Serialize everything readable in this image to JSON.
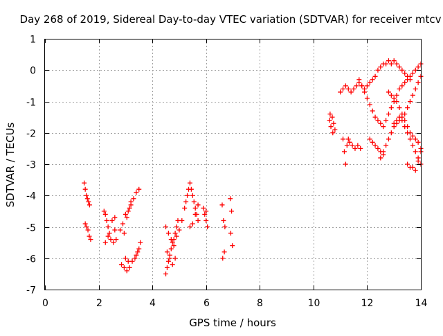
{
  "chart_data": {
    "type": "scatter",
    "title": "Day 268 of 2019, Sidereal Day-to-day VTEC variation (SDTVAR) for receiver mtcv",
    "xlabel": "GPS time / hours",
    "ylabel": "SDTVAR / TECUs",
    "xlim": [
      0,
      14
    ],
    "ylim": [
      -7,
      1
    ],
    "xticks": [
      "0",
      "2",
      "4",
      "6",
      "8",
      "10",
      "12",
      "14"
    ],
    "yticks": [
      "1",
      "0",
      "-1",
      "-2",
      "-3",
      "-4",
      "-5",
      "-6",
      "-7"
    ],
    "grid": true,
    "marker": "plus",
    "colors": {
      "series": "#ff0000",
      "grid": "#a0a0a0",
      "axis": "#000000"
    },
    "series": [
      {
        "x": [
          1.46,
          1.5,
          1.54,
          1.58,
          1.62,
          1.66,
          1.5,
          1.55,
          1.6,
          1.65,
          1.7,
          2.2,
          2.25,
          2.3,
          2.35,
          2.4,
          2.45,
          2.55,
          2.65,
          2.6,
          2.25,
          2.35,
          2.5,
          2.6,
          2.8,
          2.9,
          3.0,
          3.1,
          3.2,
          3.3,
          3.4,
          3.5,
          3.05,
          3.15,
          2.95,
          3.2,
          2.85,
          2.95,
          3.05,
          3.15,
          3.25,
          3.35,
          3.45,
          3.55,
          3.0,
          3.1,
          3.4,
          3.5
        ],
        "y": [
          -3.6,
          -3.8,
          -4.0,
          -4.1,
          -4.2,
          -4.3,
          -4.9,
          -5.0,
          -5.1,
          -5.3,
          -5.4,
          -4.5,
          -4.6,
          -4.8,
          -5.0,
          -5.2,
          -5.4,
          -5.5,
          -5.4,
          -5.1,
          -5.5,
          -5.3,
          -4.8,
          -4.7,
          -5.1,
          -4.9,
          -4.6,
          -4.5,
          -4.3,
          -4.1,
          -3.9,
          -3.8,
          -4.7,
          -4.4,
          -5.2,
          -4.2,
          -6.2,
          -6.3,
          -6.4,
          -6.3,
          -6.1,
          -6.0,
          -5.8,
          -5.5,
          -6.0,
          -6.1,
          -5.9,
          -5.7
        ]
      },
      {
        "x": [
          4.5,
          4.55,
          4.6,
          4.65,
          4.7,
          4.75,
          4.8,
          4.85,
          4.9,
          4.95,
          4.5,
          4.6,
          4.7,
          4.8,
          4.9,
          5.0,
          5.1,
          4.55,
          4.65,
          4.75,
          4.85,
          5.2,
          5.25,
          5.3,
          5.35,
          5.4,
          5.45,
          5.5,
          5.55,
          5.6,
          5.65,
          5.7,
          5.4,
          5.5,
          5.6,
          5.7,
          5.9,
          5.95,
          6.0,
          6.05,
          6.0,
          6.6,
          6.65,
          6.7,
          6.62,
          6.68,
          6.9,
          6.95,
          6.92,
          6.98
        ],
        "y": [
          -6.5,
          -6.3,
          -6.1,
          -5.9,
          -5.7,
          -5.5,
          -5.4,
          -5.2,
          -5.0,
          -4.8,
          -5.0,
          -5.2,
          -5.4,
          -5.6,
          -5.3,
          -5.1,
          -4.8,
          -5.8,
          -6.0,
          -6.2,
          -6.0,
          -4.4,
          -4.2,
          -4.0,
          -3.8,
          -3.6,
          -3.8,
          -4.0,
          -4.2,
          -4.4,
          -4.6,
          -4.8,
          -5.0,
          -4.9,
          -4.6,
          -4.3,
          -4.4,
          -4.6,
          -4.8,
          -5.0,
          -4.5,
          -4.3,
          -4.8,
          -5.0,
          -6.0,
          -5.8,
          -4.1,
          -4.5,
          -5.2,
          -5.6
        ]
      },
      {
        "x": [
          10.6,
          10.65,
          10.7,
          10.75,
          10.8,
          10.62,
          10.72,
          11.1,
          11.15,
          11.2,
          11.25,
          11.3,
          11.35,
          11.45,
          11.55,
          11.65,
          11.75,
          11.0,
          11.1,
          11.2,
          11.3,
          11.4,
          11.5,
          11.6,
          11.7,
          11.8,
          11.9,
          12.0,
          12.1,
          12.2,
          12.3,
          12.4,
          12.5,
          12.6,
          12.7,
          12.8,
          12.9,
          13.0,
          13.1,
          13.2,
          13.3,
          13.4,
          13.5,
          13.6,
          12.1,
          12.2,
          12.3,
          12.4,
          12.5,
          12.6,
          12.5,
          12.6,
          12.7,
          12.8,
          12.9,
          13.0,
          13.1,
          13.2,
          13.3,
          13.4,
          13.5,
          13.6,
          13.7,
          13.8,
          13.9,
          14.0,
          11.7,
          11.8,
          11.9,
          12.0,
          12.1,
          12.2,
          12.3,
          12.4,
          12.5,
          12.6,
          12.7,
          12.8,
          12.9,
          13.0,
          13.1,
          13.2,
          13.3,
          13.4,
          13.5,
          13.6,
          13.7,
          13.8,
          13.9,
          14.0,
          13.0,
          13.1,
          13.2,
          13.3,
          13.4,
          13.5,
          13.6,
          13.7,
          13.8,
          13.9,
          14.0,
          12.8,
          12.9,
          13.0,
          13.1,
          13.2,
          13.3,
          13.4,
          13.5,
          13.6,
          13.7,
          13.8,
          13.9,
          14.0,
          13.7,
          13.8,
          13.9,
          14.0,
          13.5,
          13.6
        ],
        "y": [
          -1.6,
          -1.8,
          -1.5,
          -1.7,
          -1.9,
          -1.4,
          -2.0,
          -2.2,
          -2.6,
          -3.0,
          -2.4,
          -2.2,
          -2.3,
          -2.4,
          -2.5,
          -2.4,
          -2.5,
          -0.7,
          -0.6,
          -0.5,
          -0.6,
          -0.7,
          -0.6,
          -0.5,
          -0.4,
          -0.5,
          -0.6,
          -0.5,
          -0.4,
          -0.3,
          -0.2,
          0.0,
          0.1,
          0.2,
          0.2,
          0.3,
          0.2,
          0.3,
          0.2,
          0.1,
          0.0,
          -0.1,
          -0.2,
          -0.3,
          -2.2,
          -2.3,
          -2.4,
          -2.5,
          -2.6,
          -2.7,
          -2.8,
          -2.6,
          -2.4,
          -2.2,
          -2.0,
          -1.8,
          -1.7,
          -1.6,
          -1.5,
          -1.4,
          -1.2,
          -1.0,
          -0.8,
          -0.6,
          -0.4,
          -0.2,
          -0.3,
          -0.5,
          -0.7,
          -0.9,
          -1.1,
          -1.3,
          -1.5,
          -1.6,
          -1.7,
          -1.8,
          -1.6,
          -1.4,
          -1.2,
          -1.0,
          -0.8,
          -0.6,
          -0.5,
          -0.4,
          -0.3,
          -0.2,
          -0.1,
          0.0,
          0.1,
          0.2,
          -1.7,
          -1.6,
          -1.5,
          -1.6,
          -1.8,
          -2.0,
          -2.2,
          -2.4,
          -2.6,
          -2.8,
          -3.0,
          -0.7,
          -0.8,
          -0.9,
          -1.0,
          -1.2,
          -1.4,
          -1.6,
          -1.8,
          -2.0,
          -2.1,
          -2.2,
          -2.3,
          -2.5,
          -3.1,
          -3.2,
          -2.9,
          -2.6,
          -3.0,
          -3.1
        ]
      }
    ]
  }
}
